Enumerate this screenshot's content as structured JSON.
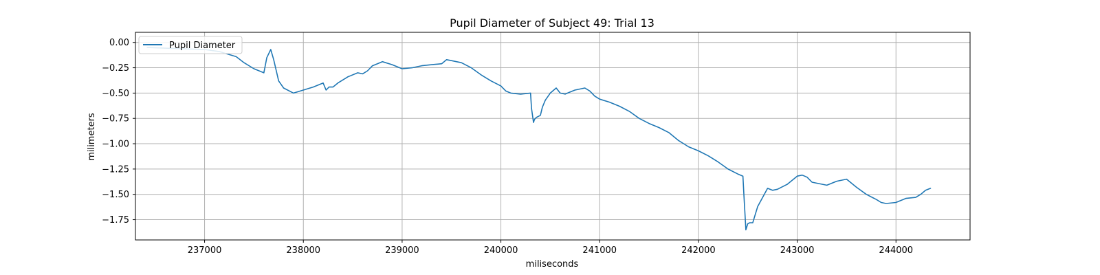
{
  "chart_data": {
    "type": "line",
    "title": "Pupil Diameter of Subject 49: Trial 13",
    "xlabel": "miliseconds",
    "ylabel": "milimeters",
    "xlim": [
      236300,
      244750
    ],
    "ylim": [
      -1.95,
      0.1
    ],
    "xticks": [
      237000,
      238000,
      239000,
      240000,
      241000,
      242000,
      243000,
      244000
    ],
    "xtick_labels": [
      "237000",
      "238000",
      "239000",
      "240000",
      "241000",
      "242000",
      "243000",
      "244000"
    ],
    "yticks": [
      0.0,
      -0.25,
      -0.5,
      -0.75,
      -1.0,
      -1.25,
      -1.5,
      -1.75
    ],
    "ytick_labels": [
      "0.00",
      "−0.25",
      "−0.50",
      "−0.75",
      "−1.00",
      "−1.25",
      "−1.50",
      "−1.75"
    ],
    "grid": true,
    "legend_position": "upper-left",
    "series": [
      {
        "name": "Pupil Diameter",
        "color": "#1f77b4",
        "x": [
          236420,
          236700,
          237000,
          237150,
          237250,
          237320,
          237400,
          237500,
          237600,
          237630,
          237670,
          237700,
          237750,
          237800,
          237900,
          238000,
          238100,
          238200,
          238230,
          238260,
          238300,
          238350,
          238450,
          238550,
          238600,
          238650,
          238700,
          238750,
          238800,
          238900,
          239000,
          239100,
          239200,
          239300,
          239400,
          239450,
          239500,
          239600,
          239700,
          239800,
          239900,
          240000,
          240050,
          240100,
          240200,
          240300,
          240310,
          240330,
          240340,
          240360,
          240400,
          240420,
          240450,
          240500,
          240560,
          240600,
          240650,
          240700,
          240750,
          240800,
          240850,
          240900,
          240950,
          241000,
          241100,
          241200,
          241300,
          241400,
          241500,
          241600,
          241700,
          241800,
          241850,
          241900,
          242000,
          242100,
          242200,
          242300,
          242400,
          242450,
          242460,
          242480,
          242500,
          242520,
          242550,
          242600,
          242650,
          242700,
          242750,
          242800,
          242900,
          243000,
          243050,
          243100,
          243150,
          243200,
          243300,
          243400,
          243450,
          243500,
          243600,
          243700,
          243800,
          243850,
          243900,
          244000,
          244100,
          244200,
          244250,
          244300,
          244350
        ],
        "y": [
          -0.05,
          -0.06,
          -0.07,
          -0.09,
          -0.12,
          -0.14,
          -0.2,
          -0.26,
          -0.3,
          -0.15,
          -0.07,
          -0.17,
          -0.38,
          -0.45,
          -0.5,
          -0.47,
          -0.44,
          -0.4,
          -0.47,
          -0.44,
          -0.44,
          -0.4,
          -0.34,
          -0.3,
          -0.31,
          -0.28,
          -0.23,
          -0.21,
          -0.19,
          -0.22,
          -0.26,
          -0.25,
          -0.23,
          -0.22,
          -0.21,
          -0.17,
          -0.18,
          -0.2,
          -0.25,
          -0.32,
          -0.38,
          -0.43,
          -0.48,
          -0.5,
          -0.51,
          -0.5,
          -0.65,
          -0.79,
          -0.76,
          -0.74,
          -0.72,
          -0.64,
          -0.57,
          -0.5,
          -0.45,
          -0.5,
          -0.51,
          -0.49,
          -0.47,
          -0.46,
          -0.45,
          -0.48,
          -0.53,
          -0.56,
          -0.59,
          -0.63,
          -0.68,
          -0.75,
          -0.8,
          -0.84,
          -0.89,
          -0.97,
          -1.0,
          -1.03,
          -1.07,
          -1.12,
          -1.18,
          -1.25,
          -1.3,
          -1.32,
          -1.5,
          -1.85,
          -1.79,
          -1.78,
          -1.78,
          -1.62,
          -1.53,
          -1.44,
          -1.46,
          -1.45,
          -1.4,
          -1.32,
          -1.31,
          -1.33,
          -1.38,
          -1.39,
          -1.41,
          -1.37,
          -1.36,
          -1.35,
          -1.43,
          -1.5,
          -1.55,
          -1.58,
          -1.59,
          -1.58,
          -1.54,
          -1.53,
          -1.5,
          -1.46,
          -1.44
        ]
      }
    ]
  }
}
